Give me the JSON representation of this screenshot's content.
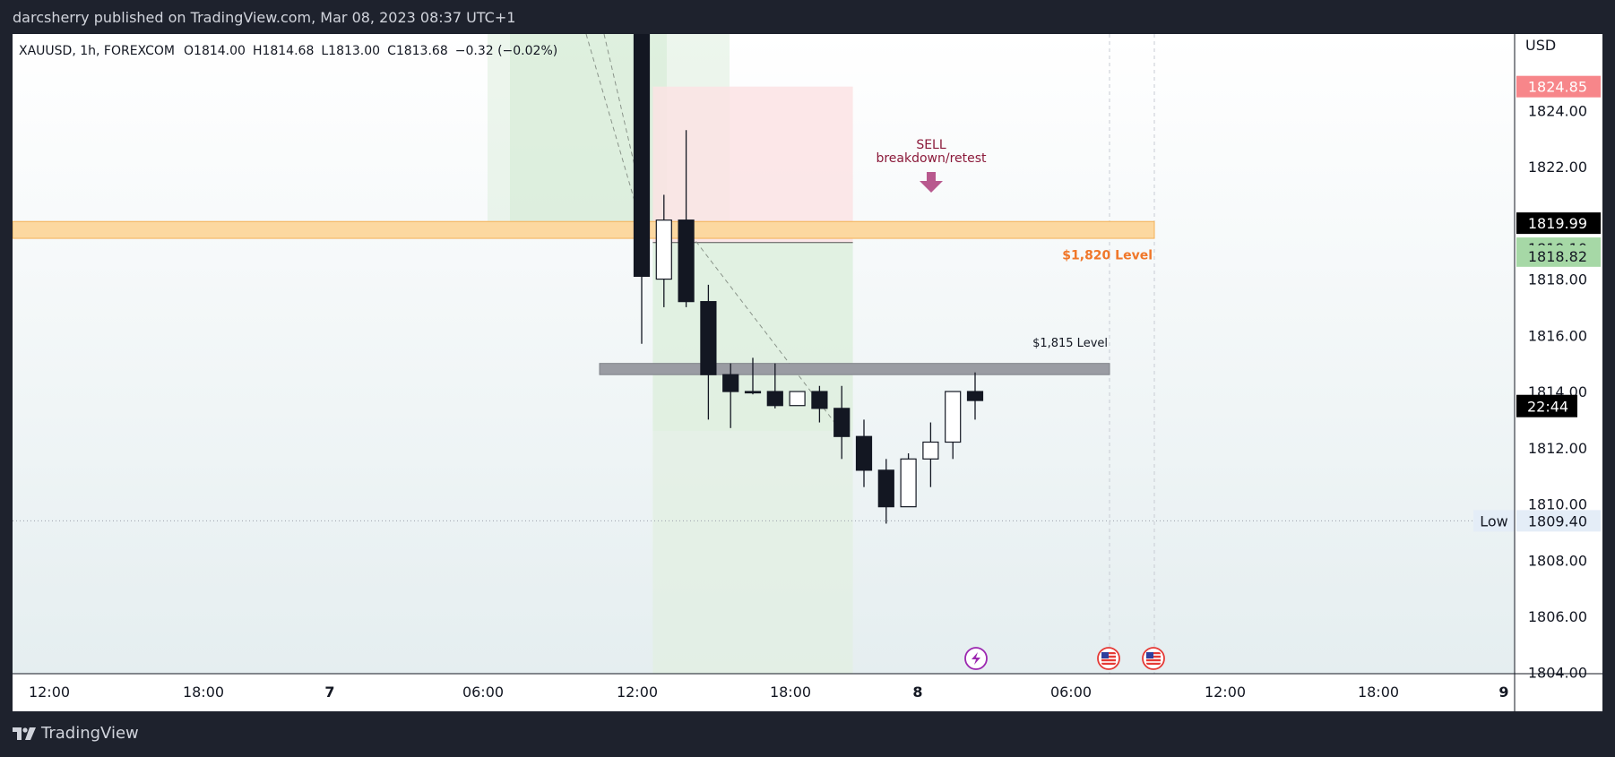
{
  "header": {
    "publisher_line": "darcsherry published on TradingView.com, Mar 08, 2023 08:37 UTC+1"
  },
  "footer": {
    "brand": "TradingView"
  },
  "chart_data": {
    "type": "candlestick",
    "symbol_line": "XAUUSD, 1h, FOREXCOM",
    "ohlc_readout": {
      "open": "O1814.00",
      "high": "H1814.68",
      "low": "L1813.00",
      "close": "C1813.68",
      "change": "−0.32 (−0.02%)"
    },
    "currency": "USD",
    "x_tick_labels": [
      "12:00",
      "18:00",
      "7",
      "06:00",
      "12:00",
      "18:00",
      "8",
      "06:00",
      "12:00",
      "18:00",
      "9"
    ],
    "y_tick_labels": [
      "1824.00",
      "1822.00",
      "1818.00",
      "1816.00",
      "1814.00",
      "1812.00",
      "1810.00",
      "1808.00",
      "1806.00",
      "1804.00"
    ],
    "y_tick_values": [
      1824,
      1822,
      1818,
      1816,
      1814,
      1812,
      1810,
      1808,
      1806,
      1804
    ],
    "ylim": [
      1803.96,
      1826.72
    ],
    "candles": [
      {
        "o": 1831.0,
        "h": 1834.0,
        "l": 1815.7,
        "c": 1818.1
      },
      {
        "o": 1818.0,
        "h": 1821.0,
        "l": 1817.0,
        "c": 1820.1
      },
      {
        "o": 1820.1,
        "h": 1823.3,
        "l": 1817.0,
        "c": 1817.2
      },
      {
        "o": 1817.2,
        "h": 1817.8,
        "l": 1813.0,
        "c": 1814.6
      },
      {
        "o": 1814.6,
        "h": 1815.0,
        "l": 1812.7,
        "c": 1814.0
      },
      {
        "o": 1814.0,
        "h": 1815.2,
        "l": 1813.9,
        "c": 1814.0
      },
      {
        "o": 1814.0,
        "h": 1815.0,
        "l": 1813.4,
        "c": 1813.5
      },
      {
        "o": 1813.5,
        "h": 1814.0,
        "l": 1813.5,
        "c": 1814.0
      },
      {
        "o": 1814.0,
        "h": 1814.2,
        "l": 1812.9,
        "c": 1813.4
      },
      {
        "o": 1813.4,
        "h": 1814.2,
        "l": 1811.6,
        "c": 1812.4
      },
      {
        "o": 1812.4,
        "h": 1813.0,
        "l": 1810.6,
        "c": 1811.2
      },
      {
        "o": 1811.2,
        "h": 1811.6,
        "l": 1809.3,
        "c": 1809.9
      },
      {
        "o": 1809.9,
        "h": 1811.8,
        "l": 1809.9,
        "c": 1811.6
      },
      {
        "o": 1811.6,
        "h": 1812.9,
        "l": 1810.6,
        "c": 1812.2
      },
      {
        "o": 1812.2,
        "h": 1814.0,
        "l": 1811.6,
        "c": 1814.0
      },
      {
        "o": 1814.0,
        "h": 1814.68,
        "l": 1813.0,
        "c": 1813.68
      }
    ],
    "horizontal_levels": [
      {
        "label": "$1,820 Level",
        "from": 1819.45,
        "to": 1820.05,
        "color": "#f7a833"
      },
      {
        "label": "$1,815 Level",
        "from": 1814.6,
        "to": 1815.0,
        "color": "#868993"
      }
    ],
    "annotation": {
      "line1": "SELL",
      "line2": "breakdown/retest",
      "color": "#8b1a3a",
      "arrow_color": "#b8598e"
    },
    "position_tool": {
      "stop_zone": [
        1819.3,
        1824.85
      ],
      "target_zone": [
        1803.96,
        1819.3
      ]
    },
    "price_labels": [
      {
        "text": "1824.85",
        "value": 1824.85,
        "bg": "#f7868a",
        "fg": "#ffffff"
      },
      {
        "text": "1819.99",
        "value": 1819.99,
        "bg": "#000000",
        "fg": "#ffffff"
      },
      {
        "text": "1819.10",
        "value": 1819.1,
        "bg": "#a6d8a6",
        "fg": "#131722"
      },
      {
        "text": "1818.82",
        "value": 1818.82,
        "bg": "#a6d8a6",
        "fg": "#131722"
      },
      {
        "text": "1809.40",
        "value": 1809.4,
        "bg": "#e4edf7",
        "fg": "#131722"
      }
    ],
    "countdown": "22:44",
    "low_marker": {
      "label": "Low",
      "value": 1809.4
    },
    "event_icons": [
      "lightning-event",
      "us-flag-event",
      "us-flag-event"
    ],
    "colors": {
      "bull_body": "#ffffff",
      "bear_body": "#131722",
      "wick": "#131722"
    }
  }
}
